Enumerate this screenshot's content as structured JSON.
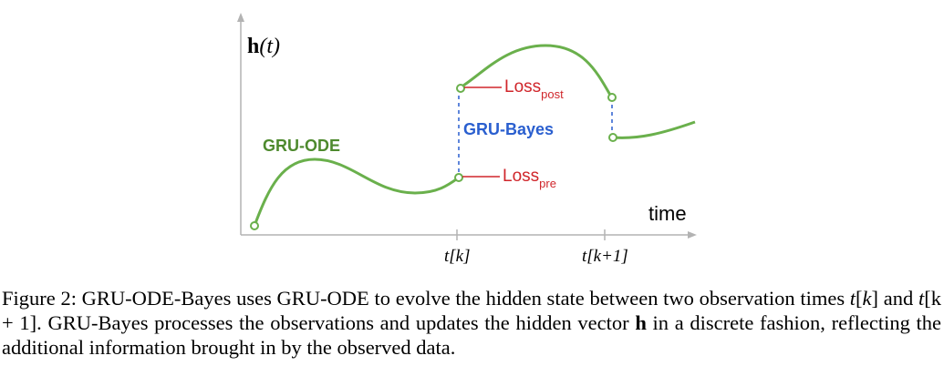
{
  "figure": {
    "y_axis_label_main": "h",
    "y_axis_label_arg": "(t)",
    "x_axis_label": "time",
    "tick_k": "t[k]",
    "tick_k1": "t[k+1]",
    "ode_label": "GRU-ODE",
    "bayes_label": "GRU-Bayes",
    "loss_post_main": "Loss",
    "loss_post_sub": "post",
    "loss_pre_main": "Loss",
    "loss_pre_sub": "pre",
    "colors": {
      "curve": "#6ab04c",
      "ode_text": "#4e8a2e",
      "bayes": "#2a5fcf",
      "loss": "#d0262b",
      "axis": "#b3b3b3"
    }
  },
  "caption": {
    "part1": "Figure 2: GRU-ODE-Bayes uses GRU-ODE to evolve the hidden state between two observation times ",
    "math1": "t",
    "math1b": "[",
    "math1c": "k",
    "math1d": "]",
    "part2": " and ",
    "math2": "t",
    "math2b": "[k + 1]",
    "part3": ". GRU-Bayes processes the observations and updates the hidden vector ",
    "bold_h": "h",
    "part4": " in a discrete fashion, reflecting the additional information brought in by the observed data."
  }
}
